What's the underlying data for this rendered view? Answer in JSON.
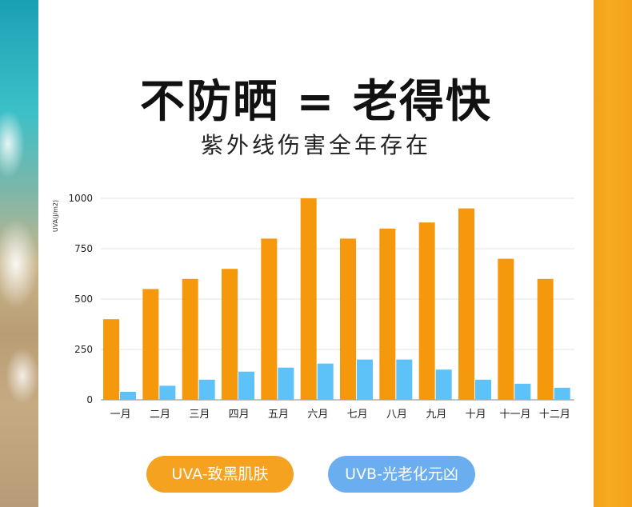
{
  "title": "不防晒 = 老得快",
  "subtitle": "紫外线伤害全年存在",
  "chart_data": {
    "type": "bar",
    "ylabel": "UVA(j/m2)",
    "xlabel": "",
    "ylim": [
      0,
      1000
    ],
    "yticks": [
      0,
      250,
      500,
      750,
      1000
    ],
    "grid": true,
    "categories": [
      "一月",
      "二月",
      "三月",
      "四月",
      "五月",
      "六月",
      "七月",
      "八月",
      "九月",
      "十月",
      "十一月",
      "十二月"
    ],
    "series": [
      {
        "name": "UVA-致黑肌肤",
        "color": "#f5980c",
        "values": [
          400,
          550,
          600,
          650,
          800,
          1000,
          800,
          850,
          880,
          950,
          700,
          600
        ]
      },
      {
        "name": "UVB-光老化元凶",
        "color": "#5cc2f7",
        "values": [
          40,
          70,
          100,
          140,
          160,
          180,
          200,
          200,
          150,
          100,
          80,
          60
        ]
      }
    ]
  },
  "legend": {
    "uva": "UVA-致黑肌肤",
    "uvb": "UVB-光老化元凶"
  }
}
